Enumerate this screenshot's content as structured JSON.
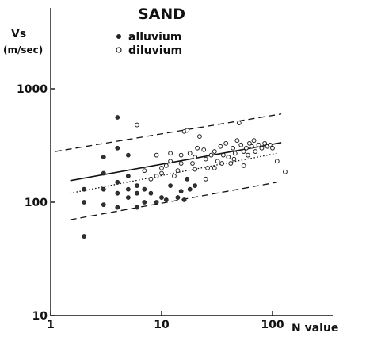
{
  "chart_data": {
    "type": "scatter",
    "title": "SAND",
    "ylabel": "Vs",
    "ylabel_unit": "(m/sec)",
    "xlabel": "N value",
    "x_scale": "log",
    "y_scale": "log",
    "xlim": [
      1,
      1000
    ],
    "ylim": [
      10,
      5000
    ],
    "x_ticks": [
      {
        "value": 1,
        "label": "1"
      },
      {
        "value": 10,
        "label": "10"
      },
      {
        "value": 100,
        "label": "100"
      }
    ],
    "y_ticks": [
      {
        "value": 10,
        "label": "10"
      },
      {
        "value": 100,
        "label": "100"
      },
      {
        "value": 1000,
        "label": "1000"
      }
    ],
    "legend": [
      {
        "label": "alluvium",
        "marker": "filled-circle"
      },
      {
        "label": "diluvium",
        "marker": "open-circle"
      }
    ],
    "grid": false,
    "lines": [
      {
        "style": "solid",
        "points": [
          [
            1.5,
            155
          ],
          [
            120,
            335
          ]
        ]
      },
      {
        "style": "dotted",
        "points": [
          [
            1.5,
            120
          ],
          [
            110,
            270
          ]
        ]
      },
      {
        "style": "dashed-upper",
        "points": [
          [
            1.1,
            280
          ],
          [
            120,
            600
          ]
        ]
      },
      {
        "style": "dashed-lower",
        "points": [
          [
            1.5,
            70
          ],
          [
            110,
            150
          ]
        ]
      }
    ],
    "series": [
      {
        "name": "alluvium",
        "points": [
          [
            2,
            50
          ],
          [
            2,
            100
          ],
          [
            2,
            130
          ],
          [
            3,
            95
          ],
          [
            3,
            130
          ],
          [
            3,
            180
          ],
          [
            4,
            560
          ],
          [
            4,
            90
          ],
          [
            4,
            120
          ],
          [
            4,
            150
          ],
          [
            5,
            110
          ],
          [
            5,
            130
          ],
          [
            5,
            170
          ],
          [
            6,
            90
          ],
          [
            6,
            120
          ],
          [
            6,
            140
          ],
          [
            7,
            100
          ],
          [
            7,
            130
          ],
          [
            8,
            120
          ],
          [
            9,
            100
          ],
          [
            10,
            110
          ],
          [
            11,
            105
          ],
          [
            12,
            140
          ],
          [
            14,
            110
          ],
          [
            15,
            125
          ],
          [
            16,
            105
          ],
          [
            17,
            160
          ],
          [
            18,
            130
          ],
          [
            20,
            140
          ],
          [
            3,
            250
          ],
          [
            5,
            260
          ],
          [
            4,
            300
          ]
        ]
      },
      {
        "name": "diluvium",
        "points": [
          [
            6,
            480
          ],
          [
            8,
            160
          ],
          [
            9,
            260
          ],
          [
            10,
            180
          ],
          [
            10,
            200
          ],
          [
            11,
            210
          ],
          [
            12,
            230
          ],
          [
            13,
            170
          ],
          [
            14,
            190
          ],
          [
            15,
            260
          ],
          [
            16,
            420
          ],
          [
            17,
            430
          ],
          [
            18,
            270
          ],
          [
            19,
            220
          ],
          [
            20,
            250
          ],
          [
            21,
            300
          ],
          [
            22,
            380
          ],
          [
            24,
            290
          ],
          [
            25,
            240
          ],
          [
            26,
            200
          ],
          [
            28,
            260
          ],
          [
            30,
            280
          ],
          [
            32,
            230
          ],
          [
            34,
            310
          ],
          [
            36,
            260
          ],
          [
            38,
            330
          ],
          [
            40,
            250
          ],
          [
            42,
            220
          ],
          [
            44,
            300
          ],
          [
            46,
            270
          ],
          [
            48,
            350
          ],
          [
            50,
            500
          ],
          [
            52,
            320
          ],
          [
            55,
            280
          ],
          [
            58,
            300
          ],
          [
            60,
            260
          ],
          [
            62,
            330
          ],
          [
            65,
            310
          ],
          [
            68,
            350
          ],
          [
            70,
            280
          ],
          [
            75,
            320
          ],
          [
            80,
            300
          ],
          [
            85,
            330
          ],
          [
            90,
            310
          ],
          [
            95,
            320
          ],
          [
            100,
            300
          ],
          [
            110,
            230
          ],
          [
            130,
            185
          ],
          [
            25,
            160
          ],
          [
            30,
            200
          ],
          [
            35,
            220
          ],
          [
            45,
            240
          ],
          [
            55,
            210
          ],
          [
            12,
            270
          ],
          [
            20,
            195
          ],
          [
            9,
            170
          ],
          [
            7,
            190
          ],
          [
            15,
            220
          ]
        ]
      }
    ]
  }
}
